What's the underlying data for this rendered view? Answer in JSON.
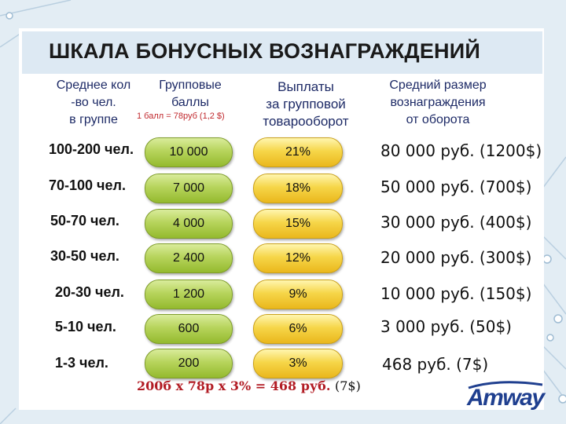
{
  "title": "ШКАЛА БОНУСНЫХ ВОЗНАГРАЖДЕНИЙ",
  "headers": {
    "group": [
      "Среднее кол",
      "-во чел.",
      "в группе"
    ],
    "points": [
      "Групповые",
      "баллы"
    ],
    "points_note": "1 балл = 78руб (1,2 $)",
    "payout": [
      "Выплаты",
      "за групповой",
      "товарооборот"
    ],
    "reward": [
      "Средний размер",
      "вознаграждения",
      "от оборота"
    ]
  },
  "rows": [
    {
      "group": "100-200 чел.",
      "points": "10 000",
      "percent": "21%",
      "reward_rub": "80 000 руб.",
      "reward_usd": "(1200$)"
    },
    {
      "group": "70-100 чел.",
      "points": "7 000",
      "percent": "18%",
      "reward_rub": "50 000 руб.",
      "reward_usd": "(700$)"
    },
    {
      "group": "50-70 чел.",
      "points": "4 000",
      "percent": "15%",
      "reward_rub": "30 000 руб.",
      "reward_usd": "(400$)"
    },
    {
      "group": "30-50 чел.",
      "points": "2 400",
      "percent": "12%",
      "reward_rub": "20 000 руб.",
      "reward_usd": "(300$)"
    },
    {
      "group": "20-30 чел.",
      "points": "1 200",
      "percent": "9%",
      "reward_rub": "10 000 руб.",
      "reward_usd": "(150$)"
    },
    {
      "group": "5-10 чел.",
      "points": "600",
      "percent": "6%",
      "reward_rub": "3 000 руб.",
      "reward_usd": "(50$)"
    },
    {
      "group": "1-3 чел.",
      "points": "200",
      "percent": "3%",
      "reward_rub": "468 руб.",
      "reward_usd": "(7$)"
    }
  ],
  "formula": {
    "text": "200б x 78р x 3% = 468 руб.",
    "usd": "(7$)"
  },
  "logo": "Amway",
  "colors": {
    "green_pill": "#b7d45c",
    "yellow_pill": "#f6d649",
    "note_red": "#c0282d",
    "header_navy": "#1d2a66",
    "logo_blue": "#1f3f8f"
  }
}
